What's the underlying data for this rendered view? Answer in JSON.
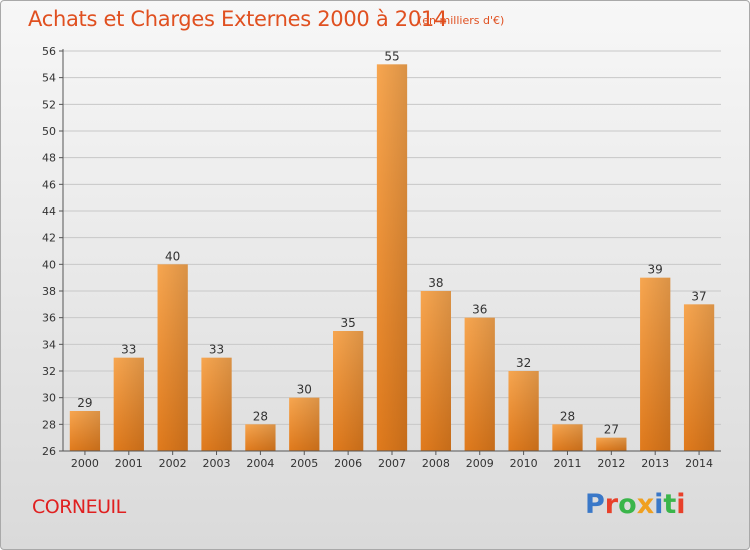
{
  "header": {
    "title": "Achats et Charges Externes 2000 à 2014",
    "subtitle": "(en milliers d'€)"
  },
  "footer": {
    "commune": "CORNEUIL",
    "brand": "Proxiti",
    "brand_letter_colors": [
      "#3a78c8",
      "#e8402a",
      "#3ab54a",
      "#f0a020",
      "#3a78c8",
      "#3ab54a",
      "#e8402a"
    ]
  },
  "colors": {
    "bar_light": "#f7a650",
    "bar_dark": "#e07a1c",
    "title": "#e05020",
    "commune": "#e02020"
  },
  "chart_data": {
    "type": "bar",
    "categories": [
      "2000",
      "2001",
      "2002",
      "2003",
      "2004",
      "2005",
      "2006",
      "2007",
      "2008",
      "2009",
      "2010",
      "2011",
      "2012",
      "2013",
      "2014"
    ],
    "values": [
      29,
      33,
      40,
      33,
      28,
      30,
      35,
      55,
      38,
      36,
      32,
      28,
      27,
      39,
      37
    ],
    "title": "Achats et Charges Externes 2000 à 2014",
    "subtitle": "(en milliers d'€)",
    "xlabel": "",
    "ylabel": "",
    "ylim": [
      26,
      56
    ],
    "yticks": [
      26,
      28,
      30,
      32,
      34,
      36,
      38,
      40,
      42,
      44,
      46,
      48,
      50,
      52,
      54,
      56
    ],
    "grid": "horizontal",
    "legend": "none"
  }
}
